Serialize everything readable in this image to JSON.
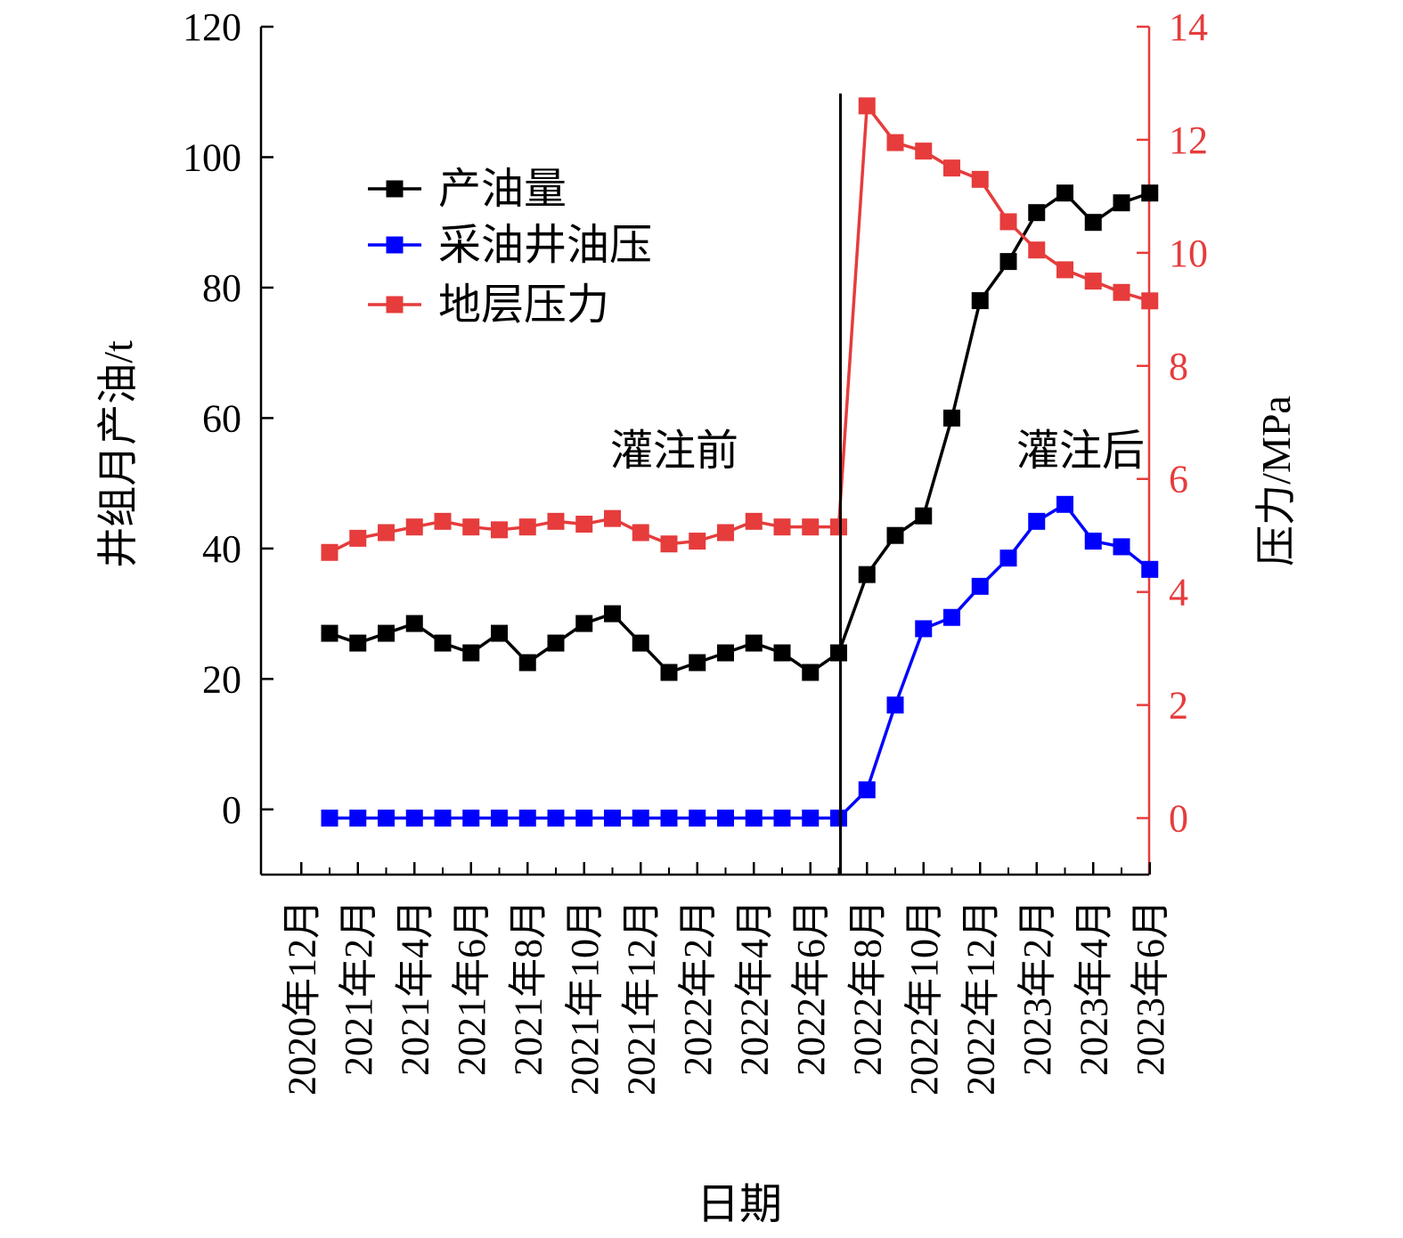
{
  "chart_data": {
    "type": "line",
    "x": [
      "2021年1月",
      "2021年2月",
      "2021年3月",
      "2021年4月",
      "2021年5月",
      "2021年6月",
      "2021年7月",
      "2021年8月",
      "2021年9月",
      "2021年10月",
      "2021年11月",
      "2021年12月",
      "2022年1月",
      "2022年2月",
      "2022年3月",
      "2022年4月",
      "2022年5月",
      "2022年6月",
      "2022年7月",
      "2022年8月",
      "2022年9月",
      "2022年10月",
      "2022年11月",
      "2022年12月",
      "2023年1月",
      "2023年2月",
      "2023年3月",
      "2023年4月",
      "2023年5月",
      "2023年6月"
    ],
    "x_tick_labels": [
      "2020年12月",
      "2021年2月",
      "2021年4月",
      "2021年6月",
      "2021年8月",
      "2021年10月",
      "2021年12月",
      "2022年2月",
      "2022年4月",
      "2022年6月",
      "2022年8月",
      "2022年10月",
      "2022年12月",
      "2023年2月",
      "2023年4月",
      "2023年6月"
    ],
    "xlabel": "日期",
    "ylabel_left": "井组月产油/t",
    "ylabel_right": "压力/MPa",
    "ylim_left": [
      -10,
      120
    ],
    "ylim_right": [
      -1,
      14
    ],
    "yticks_left": [
      0,
      20,
      40,
      60,
      80,
      100,
      120
    ],
    "yticks_right": [
      0,
      2,
      4,
      6,
      8,
      10,
      12,
      14
    ],
    "series": [
      {
        "name": "产油量",
        "axis": "left",
        "color": "#000000",
        "values": [
          27,
          25.5,
          27,
          28.5,
          25.5,
          24,
          27,
          22.5,
          25.5,
          28.5,
          30,
          25.5,
          21,
          22.5,
          24,
          25.5,
          24,
          21,
          24,
          36,
          42,
          45,
          60,
          78,
          84,
          91.5,
          94.5,
          90,
          93,
          94.5
        ]
      },
      {
        "name": "采油井油压",
        "axis": "right",
        "color": "#0000ff",
        "values": [
          0,
          0,
          0,
          0,
          0,
          0,
          0,
          0,
          0,
          0,
          0,
          0,
          0,
          0,
          0,
          0,
          0,
          0,
          0,
          0.5,
          2,
          3.35,
          3.55,
          4.1,
          4.6,
          5.25,
          5.55,
          4.9,
          4.8,
          4.4
        ]
      },
      {
        "name": "地层压力",
        "axis": "right",
        "color": "#e63c3c",
        "values": [
          4.7,
          4.95,
          5.05,
          5.15,
          5.25,
          5.15,
          5.1,
          5.15,
          5.25,
          5.2,
          5.3,
          5.05,
          4.85,
          4.9,
          5.05,
          5.25,
          5.15,
          5.15,
          5.15,
          12.6,
          11.95,
          11.8,
          11.5,
          11.3,
          10.55,
          10.05,
          9.7,
          9.5,
          9.3,
          9.15
        ]
      }
    ],
    "legend_position": "top-left",
    "divider": {
      "x": "2022年7月",
      "label_before": "灌注前",
      "label_after": "灌注后"
    },
    "grid": false
  }
}
